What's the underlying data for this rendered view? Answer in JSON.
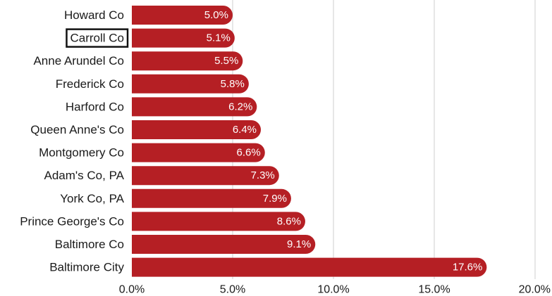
{
  "chart_data": {
    "type": "bar",
    "orientation": "horizontal",
    "categories": [
      "Howard Co",
      "Carroll Co",
      "Anne Arundel Co",
      "Frederick Co",
      "Harford Co",
      "Queen Anne's Co",
      "Montgomery Co",
      "Adam's Co, PA",
      "York Co, PA",
      "Prince George's Co",
      "Baltimore Co",
      "Baltimore City"
    ],
    "values": [
      5.0,
      5.1,
      5.5,
      5.8,
      6.2,
      6.4,
      6.6,
      7.3,
      7.9,
      8.6,
      9.1,
      17.6
    ],
    "value_labels": [
      "5.0%",
      "5.1%",
      "5.5%",
      "5.8%",
      "6.2%",
      "6.4%",
      "6.6%",
      "7.3%",
      "7.9%",
      "8.6%",
      "9.1%",
      "17.6%"
    ],
    "xticks": [
      0,
      5,
      10,
      15,
      20
    ],
    "xtick_labels": [
      "0.0%",
      "5.0%",
      "10.0%",
      "15.0%",
      "20.0%"
    ],
    "xlim": [
      0,
      20
    ],
    "highlighted_category": "Carroll Co",
    "grid": true,
    "bar_color": "#b51f24",
    "title": "",
    "xlabel": "",
    "ylabel": ""
  }
}
